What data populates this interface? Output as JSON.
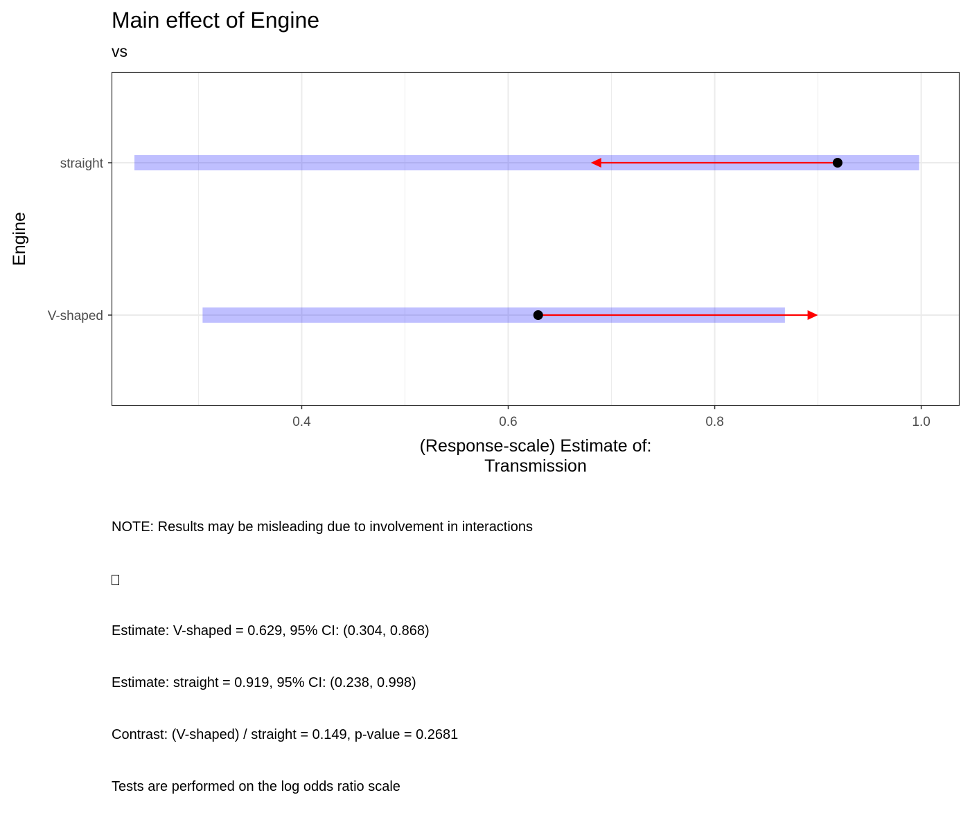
{
  "chart_data": {
    "type": "interval",
    "title": "Main effect of Engine",
    "subtitle": "vs",
    "xlabel_line1": "(Response-scale) Estimate of:",
    "xlabel_line2": "Transmission",
    "ylabel": "Engine",
    "xlim": [
      0.2165,
      1.0365
    ],
    "xticks": [
      0.4,
      0.6,
      0.8,
      1.0
    ],
    "xtick_labels": [
      "0.4",
      "0.6",
      "0.8",
      "1.0"
    ],
    "categories": [
      "V-shaped",
      "straight"
    ],
    "estimates": [
      0.629,
      0.919
    ],
    "ci_lower": [
      0.304,
      0.238
    ],
    "ci_upper": [
      0.868,
      0.998
    ],
    "arrows": [
      {
        "category": "V-shaped",
        "from": 0.629,
        "to": 0.9
      },
      {
        "category": "straight",
        "from": 0.919,
        "to": 0.68
      }
    ],
    "grid": true,
    "colors": {
      "ci_band": "#0000ff",
      "arrow": "#ff0000",
      "point": "#000000",
      "grid": "#ebebeb",
      "panel_border": "#333333"
    }
  },
  "notes": {
    "line1": "NOTE: Results may be misleading due to involvement in interactions",
    "line3": "Estimate: V-shaped = 0.629, 95% CI: (0.304, 0.868)",
    "line4": "Estimate: straight = 0.919, 95% CI: (0.238, 0.998)",
    "line5": "Contrast: (V-shaped) / straight = 0.149, p-value = 0.2681",
    "line6": "Tests are performed on the log odds ratio scale"
  }
}
